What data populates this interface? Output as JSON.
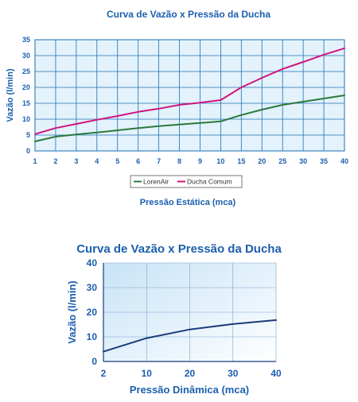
{
  "colors": {
    "text_blue": "#1b5fae",
    "grid_blue": "#1f6fb6",
    "lorenair_green": "#2b7a3c",
    "ducha_magenta": "#d0157e",
    "chart2_line": "#1b3c7a",
    "chart1_bg": "#e3f2fb"
  },
  "chart_data": [
    {
      "type": "line",
      "title": "Curva de Vazão x Pressão da Ducha",
      "xlabel": "Pressão Estática (mca)",
      "ylabel": "Vazão (l/min)",
      "categories": [
        "1",
        "2",
        "3",
        "4",
        "5",
        "6",
        "7",
        "8",
        "9",
        "10",
        "15",
        "20",
        "25",
        "30",
        "35",
        "40"
      ],
      "y_ticks": [
        "0",
        "5",
        "10",
        "15",
        "20",
        "25",
        "30",
        "35"
      ],
      "ylim": [
        0,
        35
      ],
      "grid": true,
      "legend_position": "bottom-center",
      "series": [
        {
          "name": "LorenAir",
          "color": "#2b7a3c",
          "values": [
            3.0,
            4.5,
            5.2,
            5.8,
            6.5,
            7.2,
            7.8,
            8.3,
            8.8,
            9.3,
            11.3,
            13.0,
            14.5,
            15.5,
            16.5,
            17.5
          ]
        },
        {
          "name": "Ducha Comum",
          "color": "#d0157e",
          "values": [
            5.3,
            7.2,
            8.5,
            9.8,
            11.0,
            12.3,
            13.3,
            14.5,
            15.2,
            16.0,
            20.0,
            23.0,
            25.8,
            28.0,
            30.3,
            32.3
          ]
        }
      ]
    },
    {
      "type": "line",
      "title": "Curva de Vazão x Pressão da Ducha",
      "xlabel": "Pressão Dinâmica (mca)",
      "ylabel": "Vazão (l/min)",
      "categories": [
        "2",
        "10",
        "20",
        "30",
        "40"
      ],
      "y_ticks": [
        "0",
        "10",
        "20",
        "30",
        "40"
      ],
      "ylim": [
        0,
        40
      ],
      "grid": true,
      "series": [
        {
          "color": "#1b3c7a",
          "values": [
            4.0,
            9.5,
            13.0,
            15.2,
            16.8
          ]
        }
      ]
    }
  ]
}
